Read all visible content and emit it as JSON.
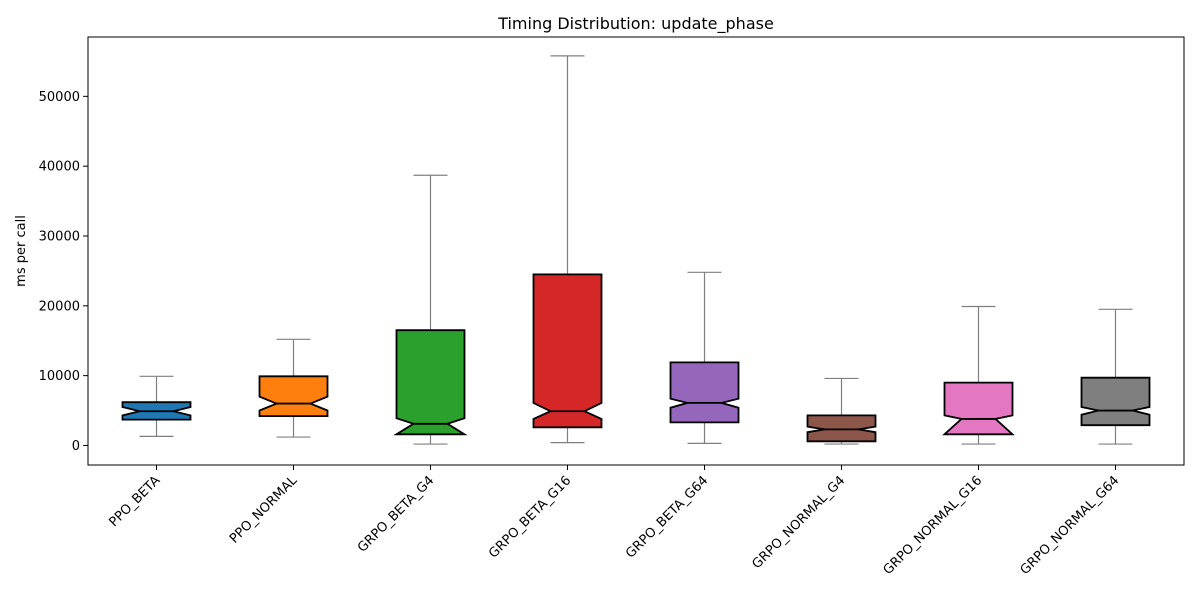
{
  "chart_data": {
    "type": "boxplot",
    "title": "Timing Distribution: update_phase",
    "xlabel": "",
    "ylabel": "ms per call",
    "ylim": [
      -2800,
      58500
    ],
    "yticks": [
      0,
      10000,
      20000,
      30000,
      40000,
      50000
    ],
    "notched": true,
    "grid": false,
    "legend": "none",
    "categories": [
      "PPO_BETA",
      "PPO_NORMAL",
      "GRPO_BETA_G4",
      "GRPO_BETA_G16",
      "GRPO_BETA_G64",
      "GRPO_NORMAL_G4",
      "GRPO_NORMAL_G16",
      "GRPO_NORMAL_G64"
    ],
    "boxes": [
      {
        "category": "PPO_BETA",
        "color": "#1f77b4",
        "whisker_low": 1300,
        "q1": 3700,
        "median": 4900,
        "q3": 6200,
        "whisker_high": 9900,
        "notch_low": 4300,
        "notch_high": 5500
      },
      {
        "category": "PPO_NORMAL",
        "color": "#ff7f0e",
        "whisker_low": 1200,
        "q1": 4200,
        "median": 6000,
        "q3": 9900,
        "whisker_high": 15200,
        "notch_low": 5000,
        "notch_high": 7000
      },
      {
        "category": "GRPO_BETA_G4",
        "color": "#2ca02c",
        "whisker_low": 200,
        "q1": 1600,
        "median": 3100,
        "q3": 16500,
        "whisker_high": 38700,
        "notch_low": 1600,
        "notch_high": 3900
      },
      {
        "category": "GRPO_BETA_G16",
        "color": "#d62728",
        "whisker_low": 400,
        "q1": 2600,
        "median": 4900,
        "q3": 24500,
        "whisker_high": 55800,
        "notch_low": 3800,
        "notch_high": 6100
      },
      {
        "category": "GRPO_BETA_G64",
        "color": "#9467bd",
        "whisker_low": 300,
        "q1": 3300,
        "median": 6100,
        "q3": 11900,
        "whisker_high": 24800,
        "notch_low": 5400,
        "notch_high": 6700
      },
      {
        "category": "GRPO_NORMAL_G4",
        "color": "#8c564b",
        "whisker_low": 200,
        "q1": 600,
        "median": 2300,
        "q3": 4300,
        "whisker_high": 9600,
        "notch_low": 1900,
        "notch_high": 2700
      },
      {
        "category": "GRPO_NORMAL_G16",
        "color": "#e377c2",
        "whisker_low": 200,
        "q1": 1600,
        "median": 3800,
        "q3": 9000,
        "whisker_high": 19900,
        "notch_low": 1600,
        "notch_high": 4300
      },
      {
        "category": "GRPO_NORMAL_G64",
        "color": "#7f7f7f",
        "whisker_low": 200,
        "q1": 2900,
        "median": 5000,
        "q3": 9700,
        "whisker_high": 19500,
        "notch_low": 4400,
        "notch_high": 5500
      }
    ]
  }
}
